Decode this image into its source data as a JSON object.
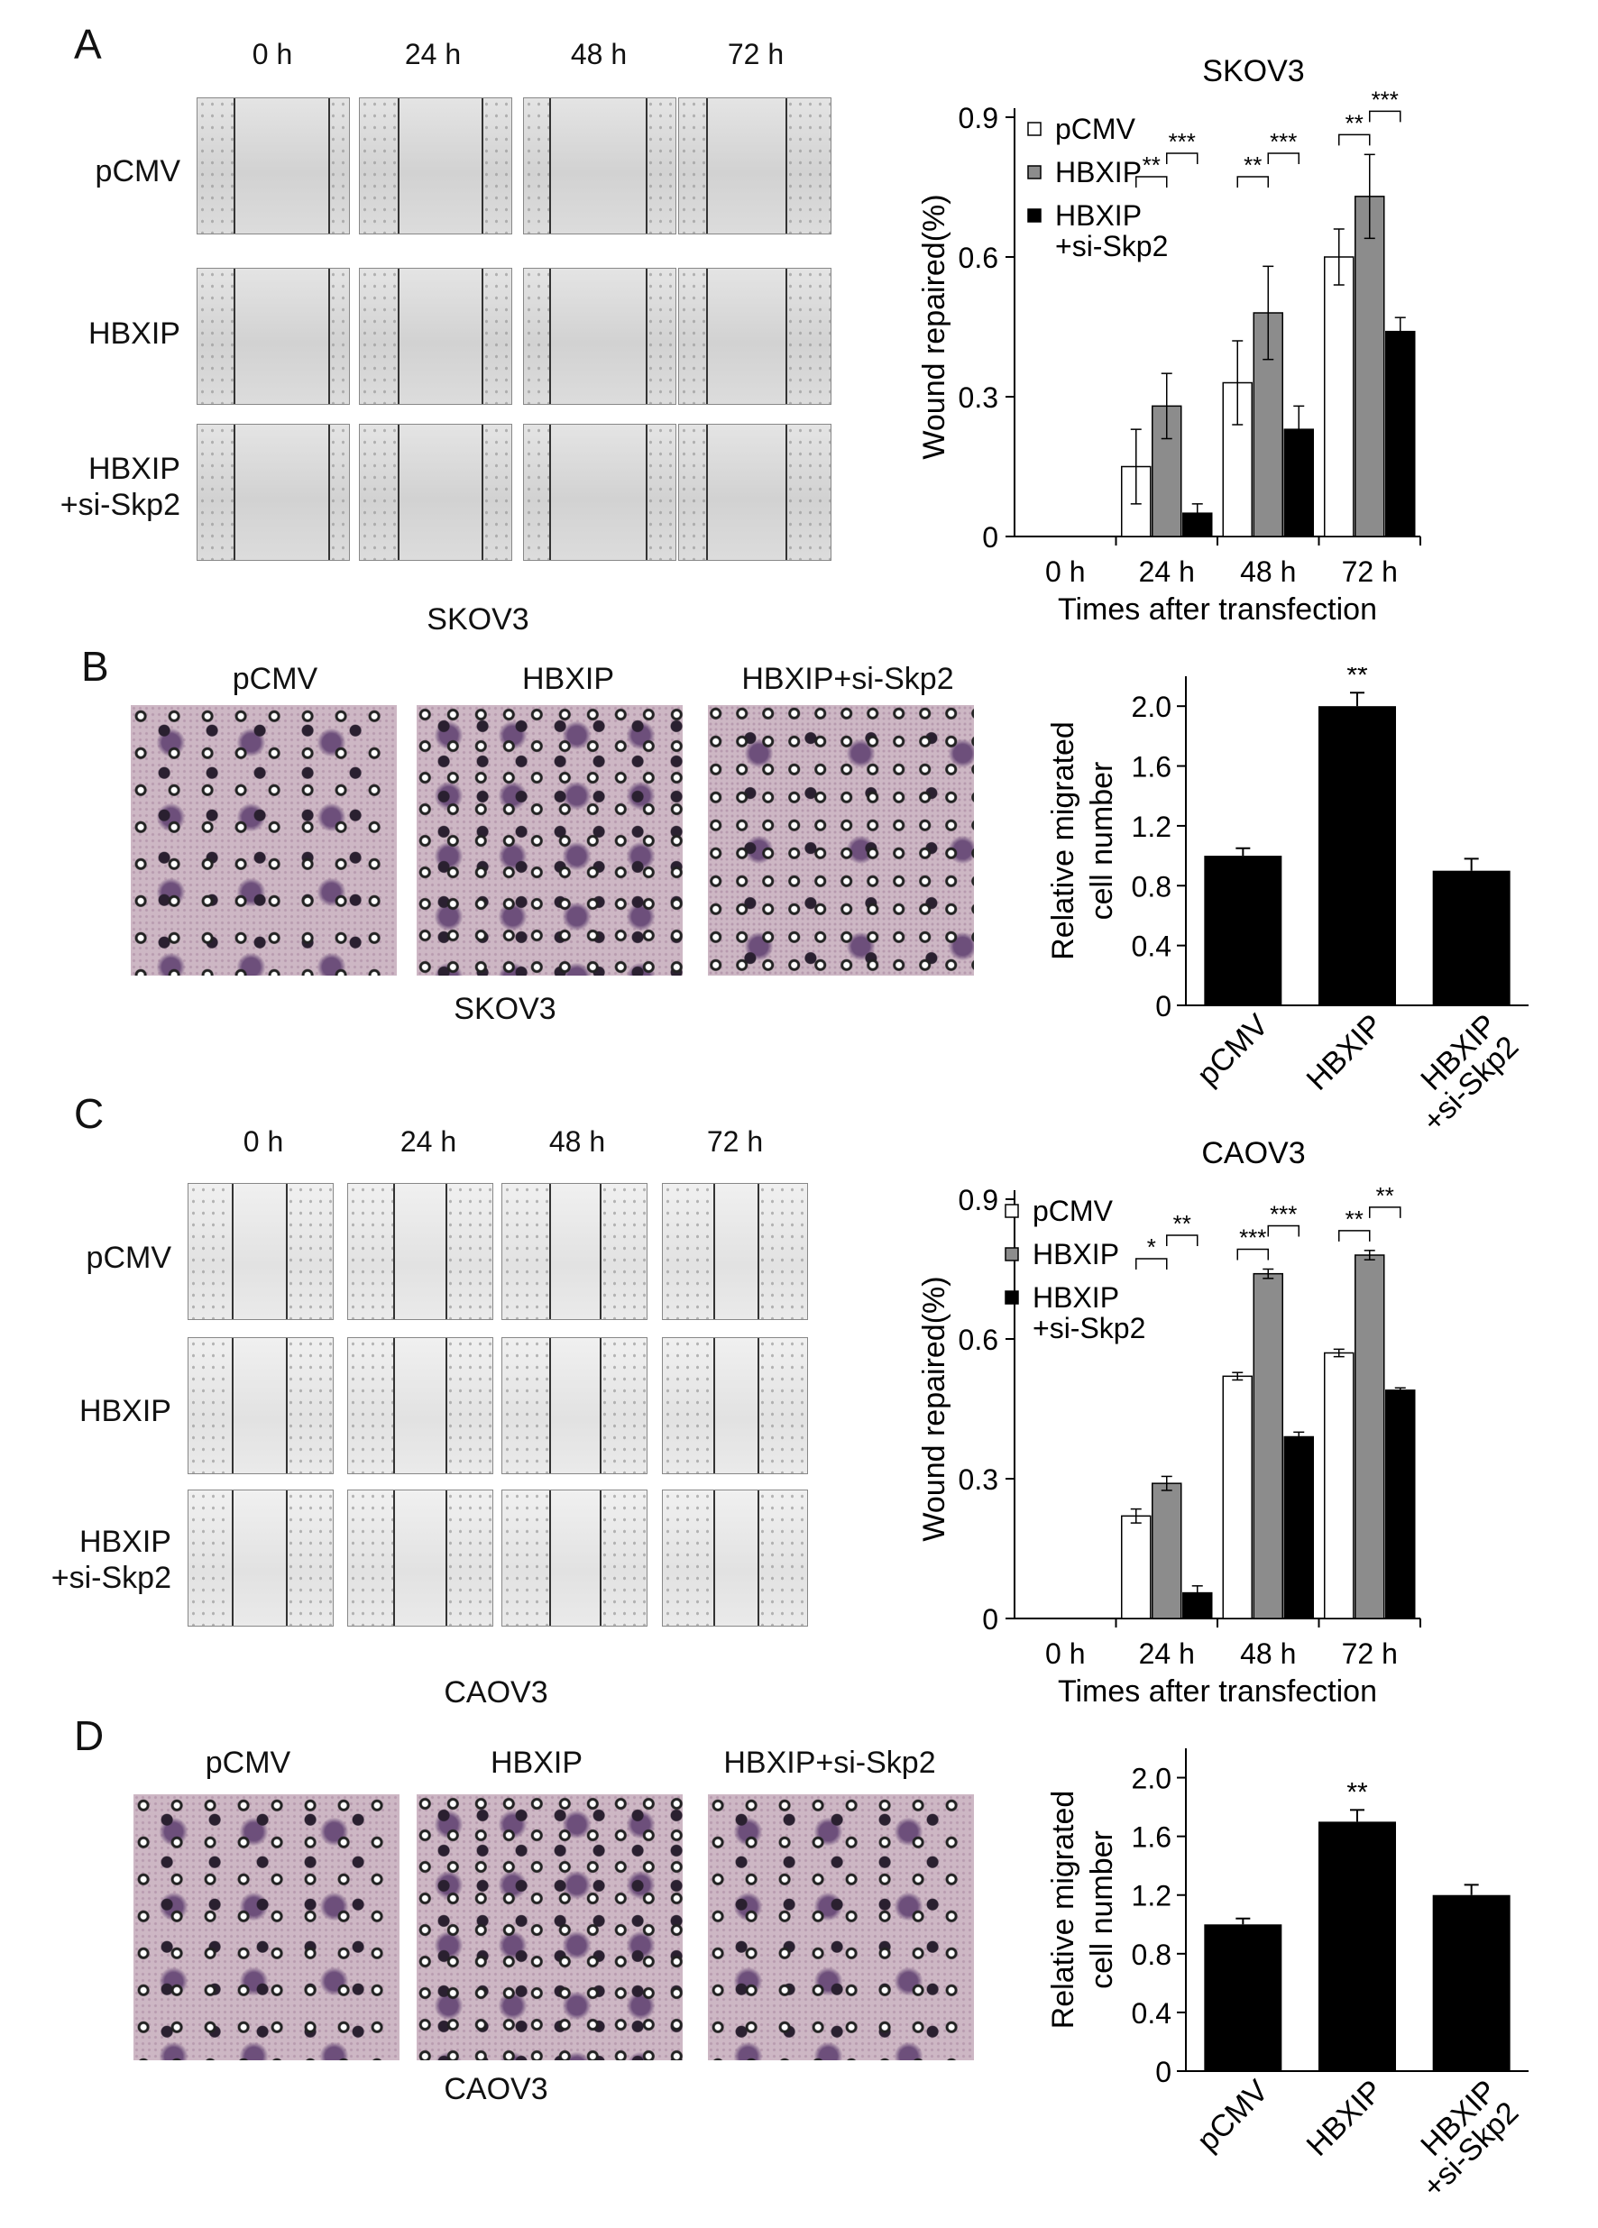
{
  "panels": {
    "A": {
      "letter": "A",
      "time_labels": [
        "0 h",
        "24 h",
        "48 h",
        "72 h"
      ],
      "row_labels": [
        "pCMV",
        "HBXIP",
        "HBXIP\n+si-Skp2"
      ]
    },
    "B": {
      "letter": "B",
      "top_caption": "SKOV3",
      "bottom_caption": "SKOV3",
      "image_labels": [
        "pCMV",
        "HBXIP",
        "HBXIP+si-Skp2"
      ]
    },
    "C": {
      "letter": "C",
      "time_labels": [
        "0 h",
        "24 h",
        "48 h",
        "72 h"
      ],
      "row_labels": [
        "pCMV",
        "HBXIP",
        "HBXIP\n+si-Skp2"
      ]
    },
    "D": {
      "letter": "D",
      "top_caption": "CAOV3",
      "bottom_caption": "CAOV3",
      "image_labels": [
        "pCMV",
        "HBXIP",
        "HBXIP+si-Skp2"
      ]
    }
  },
  "colors": {
    "pCMV": "#ffffff",
    "HBXIP": "#8c8c8c",
    "HBXIP_si": "#000000",
    "axis": "#000000"
  },
  "chart_data": [
    {
      "id": "A",
      "type": "bar",
      "title": "SKOV3",
      "xlabel": "Times after transfection",
      "ylabel": "Wound repaired(%)",
      "categories": [
        "0 h",
        "24 h",
        "48 h",
        "72 h"
      ],
      "ylim": [
        0,
        0.9
      ],
      "yticks": [
        "0",
        "0.3",
        "0.6",
        "0.9"
      ],
      "yvals": [
        0,
        0.3,
        0.6,
        0.9
      ],
      "legend": [
        "pCMV",
        "HBXIP",
        "HBXIP\n+si-Skp2"
      ],
      "series": [
        {
          "name": "pCMV",
          "values": [
            0,
            0.15,
            0.33,
            0.6
          ],
          "errors": [
            0,
            0.08,
            0.09,
            0.06
          ]
        },
        {
          "name": "HBXIP",
          "values": [
            0,
            0.28,
            0.48,
            0.73
          ],
          "errors": [
            0,
            0.07,
            0.1,
            0.09
          ]
        },
        {
          "name": "HBXIP\n+si-Skp2",
          "values": [
            0,
            0.05,
            0.23,
            0.44
          ],
          "errors": [
            0,
            0.02,
            0.05,
            0.03
          ]
        }
      ],
      "significance": [
        {
          "cat": 1,
          "from": 0,
          "to": 1,
          "label": "**"
        },
        {
          "cat": 1,
          "from": 1,
          "to": 2,
          "label": "***"
        },
        {
          "cat": 2,
          "from": 0,
          "to": 1,
          "label": "**"
        },
        {
          "cat": 2,
          "from": 1,
          "to": 2,
          "label": "***"
        },
        {
          "cat": 3,
          "from": 0,
          "to": 1,
          "label": "**"
        },
        {
          "cat": 3,
          "from": 1,
          "to": 2,
          "label": "***"
        }
      ]
    },
    {
      "id": "B",
      "type": "bar",
      "title": "",
      "xlabel": "",
      "ylabel": "Relative migrated\ncell number",
      "categories": [
        "pCMV",
        "HBXIP",
        "HBXIP\n+si-Skp2"
      ],
      "ylim": [
        0,
        2.2
      ],
      "yticks": [
        "0",
        "0.4",
        "0.8",
        "1.2",
        "1.6",
        "2.0"
      ],
      "yvals": [
        0,
        0.4,
        0.8,
        1.2,
        1.6,
        2.0
      ],
      "values": [
        1.0,
        2.0,
        0.9
      ],
      "errors": [
        0.05,
        0.09,
        0.08
      ],
      "bar_labels": [
        "",
        "**",
        ""
      ]
    },
    {
      "id": "C",
      "type": "bar",
      "title": "CAOV3",
      "xlabel": "Times after transfection",
      "ylabel": "Wound repaired(%)",
      "categories": [
        "0 h",
        "24 h",
        "48 h",
        "72 h"
      ],
      "ylim": [
        0,
        0.9
      ],
      "yticks": [
        "0",
        "0.3",
        "0.6",
        "0.9"
      ],
      "yvals": [
        0,
        0.3,
        0.6,
        0.9
      ],
      "legend": [
        "pCMV",
        "HBXIP",
        "HBXIP\n+si-Skp2"
      ],
      "series": [
        {
          "name": "pCMV",
          "values": [
            0,
            0.22,
            0.52,
            0.57
          ],
          "errors": [
            0,
            0.015,
            0.008,
            0.008
          ]
        },
        {
          "name": "HBXIP",
          "values": [
            0,
            0.29,
            0.74,
            0.78
          ],
          "errors": [
            0,
            0.015,
            0.01,
            0.01
          ]
        },
        {
          "name": "HBXIP\n+si-Skp2",
          "values": [
            0,
            0.055,
            0.39,
            0.49
          ],
          "errors": [
            0,
            0.015,
            0.01,
            0.005
          ]
        }
      ],
      "significance": [
        {
          "cat": 1,
          "from": 0,
          "to": 1,
          "label": "*"
        },
        {
          "cat": 1,
          "from": 1,
          "to": 2,
          "label": "**"
        },
        {
          "cat": 2,
          "from": 0,
          "to": 1,
          "label": "***"
        },
        {
          "cat": 2,
          "from": 1,
          "to": 2,
          "label": "***"
        },
        {
          "cat": 3,
          "from": 0,
          "to": 1,
          "label": "**"
        },
        {
          "cat": 3,
          "from": 1,
          "to": 2,
          "label": "**"
        }
      ]
    },
    {
      "id": "D",
      "type": "bar",
      "title": "",
      "xlabel": "",
      "ylabel": "Relative migrated\ncell number",
      "categories": [
        "pCMV",
        "HBXIP",
        "HBXIP\n+si-Skp2"
      ],
      "ylim": [
        0,
        2.2
      ],
      "yticks": [
        "0",
        "0.4",
        "0.8",
        "1.2",
        "1.6",
        "2.0"
      ],
      "yvals": [
        0,
        0.4,
        0.8,
        1.2,
        1.6,
        2.0
      ],
      "values": [
        1.0,
        1.7,
        1.2
      ],
      "errors": [
        0.04,
        0.08,
        0.07
      ],
      "bar_labels": [
        "",
        "**",
        ""
      ]
    }
  ]
}
